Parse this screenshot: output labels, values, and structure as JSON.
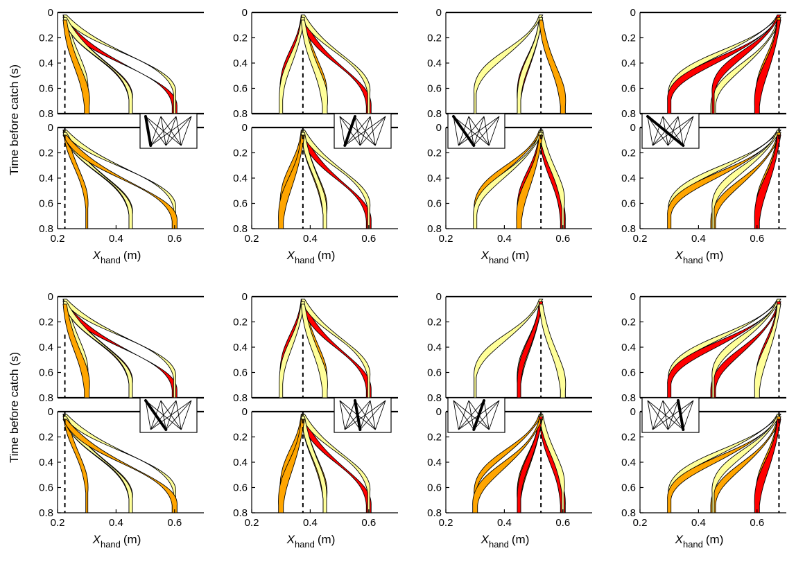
{
  "chart_data": {
    "type": "line",
    "ylabel": "Time before catch (s)",
    "xlabel_main": "X",
    "xlabel_sub": "hand",
    "xlabel_unit": "(m)",
    "xlim": [
      0.2,
      0.7
    ],
    "ylim": [
      0,
      0.8
    ],
    "xticks": [
      0.2,
      0.4,
      0.6
    ],
    "yticks": [
      0,
      0.2,
      0.4,
      0.6,
      0.8
    ],
    "tick_labels_x": [
      "0.2",
      "0.4",
      "0.6"
    ],
    "tick_labels_y": [
      "0",
      "0.2",
      "0.4",
      "0.6",
      "0.8"
    ],
    "ball_positions": [
      0.3,
      0.45,
      0.6
    ],
    "band_colors": {
      "yellow": "#FFFF99",
      "red": "#FF0000",
      "orange": "#FFA500"
    },
    "panels": [
      {
        "target_x": 0.225,
        "inset_from": 0.25,
        "inset_to": 0.4,
        "top": [
          {
            "from": 0.225,
            "to": 0.3,
            "c": "y"
          },
          {
            "from": 0.225,
            "to": 0.45,
            "c": "r"
          },
          {
            "from": 0.225,
            "to": 0.6,
            "c": "r"
          },
          {
            "from": 0.225,
            "to": 0.6,
            "c": "y"
          },
          {
            "from": 0.225,
            "to": 0.45,
            "c": "y"
          },
          {
            "from": 0.225,
            "to": 0.3,
            "c": "o"
          }
        ],
        "bottom": [
          {
            "from": 0.225,
            "to": 0.3,
            "c": "o"
          },
          {
            "from": 0.225,
            "to": 0.45,
            "c": "o"
          },
          {
            "from": 0.225,
            "to": 0.6,
            "c": "r"
          },
          {
            "from": 0.225,
            "to": 0.6,
            "c": "y"
          },
          {
            "from": 0.225,
            "to": 0.45,
            "c": "y"
          },
          {
            "from": 0.225,
            "to": 0.6,
            "c": "o"
          }
        ]
      },
      {
        "target_x": 0.375,
        "inset_from": 0.4,
        "inset_to": 0.4,
        "top": [
          {
            "from": 0.375,
            "to": 0.3,
            "c": "r"
          },
          {
            "from": 0.375,
            "to": 0.45,
            "c": "o"
          },
          {
            "from": 0.375,
            "to": 0.6,
            "c": "r"
          },
          {
            "from": 0.375,
            "to": 0.6,
            "c": "y"
          },
          {
            "from": 0.375,
            "to": 0.3,
            "c": "y"
          },
          {
            "from": 0.375,
            "to": 0.45,
            "c": "y"
          }
        ],
        "bottom": [
          {
            "from": 0.375,
            "to": 0.3,
            "c": "o"
          },
          {
            "from": 0.375,
            "to": 0.45,
            "c": "o"
          },
          {
            "from": 0.375,
            "to": 0.6,
            "c": "r"
          },
          {
            "from": 0.375,
            "to": 0.6,
            "c": "y"
          },
          {
            "from": 0.375,
            "to": 0.45,
            "c": "y"
          },
          {
            "from": 0.375,
            "to": 0.3,
            "c": "o"
          }
        ]
      },
      {
        "target_x": 0.525,
        "inset_from": 0.25,
        "inset_to": 0.55,
        "top": [
          {
            "from": 0.525,
            "to": 0.3,
            "c": "r"
          },
          {
            "from": 0.525,
            "to": 0.45,
            "c": "r"
          },
          {
            "from": 0.525,
            "to": 0.6,
            "c": "y"
          },
          {
            "from": 0.525,
            "to": 0.3,
            "c": "y"
          },
          {
            "from": 0.525,
            "to": 0.45,
            "c": "y"
          },
          {
            "from": 0.525,
            "to": 0.6,
            "c": "o"
          }
        ],
        "bottom": [
          {
            "from": 0.525,
            "to": 0.3,
            "c": "o"
          },
          {
            "from": 0.525,
            "to": 0.45,
            "c": "r"
          },
          {
            "from": 0.525,
            "to": 0.6,
            "c": "r"
          },
          {
            "from": 0.525,
            "to": 0.6,
            "c": "y"
          },
          {
            "from": 0.525,
            "to": 0.3,
            "c": "y"
          },
          {
            "from": 0.525,
            "to": 0.45,
            "c": "o"
          }
        ]
      },
      {
        "target_x": 0.675,
        "inset_from": 0.25,
        "inset_to": 0.7,
        "top": [
          {
            "from": 0.675,
            "to": 0.3,
            "c": "y"
          },
          {
            "from": 0.675,
            "to": 0.3,
            "c": "r"
          },
          {
            "from": 0.675,
            "to": 0.45,
            "c": "y"
          },
          {
            "from": 0.675,
            "to": 0.45,
            "c": "r"
          },
          {
            "from": 0.675,
            "to": 0.6,
            "c": "o"
          },
          {
            "from": 0.675,
            "to": 0.6,
            "c": "r"
          }
        ],
        "bottom": [
          {
            "from": 0.675,
            "to": 0.3,
            "c": "y"
          },
          {
            "from": 0.675,
            "to": 0.3,
            "c": "o"
          },
          {
            "from": 0.675,
            "to": 0.45,
            "c": "o"
          },
          {
            "from": 0.675,
            "to": 0.45,
            "c": "y"
          },
          {
            "from": 0.675,
            "to": 0.6,
            "c": "o"
          },
          {
            "from": 0.675,
            "to": 0.6,
            "c": "r"
          }
        ]
      },
      {
        "target_x": 0.225,
        "inset_from": 0.25,
        "inset_to": 0.55,
        "top": [
          {
            "from": 0.225,
            "to": 0.3,
            "c": "y"
          },
          {
            "from": 0.225,
            "to": 0.45,
            "c": "r"
          },
          {
            "from": 0.225,
            "to": 0.6,
            "c": "r"
          },
          {
            "from": 0.225,
            "to": 0.6,
            "c": "y"
          },
          {
            "from": 0.225,
            "to": 0.45,
            "c": "y"
          },
          {
            "from": 0.225,
            "to": 0.3,
            "c": "o"
          }
        ],
        "bottom": [
          {
            "from": 0.225,
            "to": 0.3,
            "c": "o"
          },
          {
            "from": 0.225,
            "to": 0.45,
            "c": "o"
          },
          {
            "from": 0.225,
            "to": 0.6,
            "c": "r"
          },
          {
            "from": 0.225,
            "to": 0.6,
            "c": "y"
          },
          {
            "from": 0.225,
            "to": 0.45,
            "c": "y"
          },
          {
            "from": 0.225,
            "to": 0.6,
            "c": "o"
          }
        ]
      },
      {
        "target_x": 0.375,
        "inset_from": 0.4,
        "inset_to": 0.55,
        "top": [
          {
            "from": 0.375,
            "to": 0.3,
            "c": "r"
          },
          {
            "from": 0.375,
            "to": 0.45,
            "c": "o"
          },
          {
            "from": 0.375,
            "to": 0.6,
            "c": "r"
          },
          {
            "from": 0.375,
            "to": 0.6,
            "c": "y"
          },
          {
            "from": 0.375,
            "to": 0.3,
            "c": "y"
          },
          {
            "from": 0.375,
            "to": 0.45,
            "c": "y"
          }
        ],
        "bottom": [
          {
            "from": 0.375,
            "to": 0.3,
            "c": "o"
          },
          {
            "from": 0.375,
            "to": 0.45,
            "c": "o"
          },
          {
            "from": 0.375,
            "to": 0.6,
            "c": "r"
          },
          {
            "from": 0.375,
            "to": 0.6,
            "c": "y"
          },
          {
            "from": 0.375,
            "to": 0.45,
            "c": "y"
          },
          {
            "from": 0.375,
            "to": 0.3,
            "c": "o"
          }
        ]
      },
      {
        "target_x": 0.525,
        "inset_from": 0.55,
        "inset_to": 0.55,
        "top": [
          {
            "from": 0.525,
            "to": 0.3,
            "c": "r"
          },
          {
            "from": 0.525,
            "to": 0.45,
            "c": "y"
          },
          {
            "from": 0.525,
            "to": 0.6,
            "c": "r"
          },
          {
            "from": 0.525,
            "to": 0.3,
            "c": "y"
          },
          {
            "from": 0.525,
            "to": 0.45,
            "c": "r"
          },
          {
            "from": 0.525,
            "to": 0.6,
            "c": "y"
          }
        ],
        "bottom": [
          {
            "from": 0.525,
            "to": 0.3,
            "c": "o"
          },
          {
            "from": 0.525,
            "to": 0.45,
            "c": "o"
          },
          {
            "from": 0.525,
            "to": 0.6,
            "c": "r"
          },
          {
            "from": 0.525,
            "to": 0.6,
            "c": "y"
          },
          {
            "from": 0.525,
            "to": 0.45,
            "c": "r"
          },
          {
            "from": 0.525,
            "to": 0.3,
            "c": "o"
          }
        ]
      },
      {
        "target_x": 0.675,
        "inset_from": 0.55,
        "inset_to": 0.7,
        "top": [
          {
            "from": 0.675,
            "to": 0.3,
            "c": "y"
          },
          {
            "from": 0.675,
            "to": 0.3,
            "c": "r"
          },
          {
            "from": 0.675,
            "to": 0.45,
            "c": "r"
          },
          {
            "from": 0.675,
            "to": 0.45,
            "c": "y"
          },
          {
            "from": 0.675,
            "to": 0.6,
            "c": "r"
          },
          {
            "from": 0.675,
            "to": 0.6,
            "c": "y"
          }
        ],
        "bottom": [
          {
            "from": 0.675,
            "to": 0.3,
            "c": "y"
          },
          {
            "from": 0.675,
            "to": 0.3,
            "c": "o"
          },
          {
            "from": 0.675,
            "to": 0.45,
            "c": "o"
          },
          {
            "from": 0.675,
            "to": 0.45,
            "c": "y"
          },
          {
            "from": 0.675,
            "to": 0.6,
            "c": "o"
          },
          {
            "from": 0.675,
            "to": 0.6,
            "c": "r"
          }
        ]
      }
    ]
  }
}
